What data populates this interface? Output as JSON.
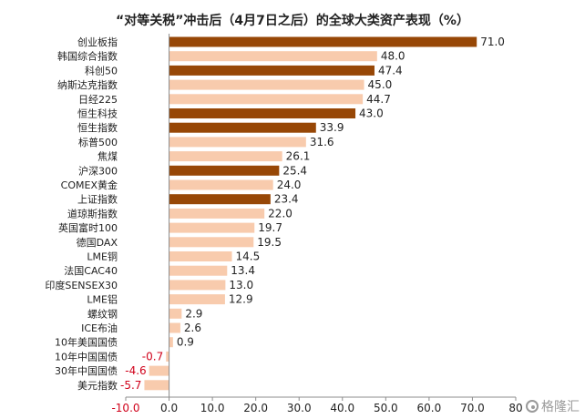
{
  "chart_data": {
    "type": "bar",
    "orientation": "horizontal",
    "title": "“对等关税”冲击后（4月7日之后）的全球大类资产表现（%）",
    "categories": [
      "创业板指",
      "韩国综合指数",
      "科创50",
      "纳斯达克指数",
      "日经225",
      "恒生科技",
      "恒生指数",
      "标普500",
      "焦煤",
      "沪深300",
      "COMEX黄金",
      "上证指数",
      "道琼斯指数",
      "英国富时100",
      "德国DAX",
      "LME铜",
      "法国CAC40",
      "印度SENSEX30",
      "LME铝",
      "螺纹钢",
      "ICE布油",
      "10年美国国债",
      "10年中国国债",
      "30年中国国债",
      "美元指数"
    ],
    "values": [
      71.0,
      48.0,
      47.4,
      45.0,
      44.7,
      43.0,
      33.9,
      31.6,
      26.1,
      25.4,
      24.0,
      23.4,
      22.0,
      19.7,
      19.5,
      14.5,
      13.4,
      13.0,
      12.9,
      2.9,
      2.6,
      0.9,
      -0.7,
      -4.6,
      -5.7
    ],
    "value_labels": [
      "71.0",
      "48.0",
      "47.4",
      "45.0",
      "44.7",
      "43.0",
      "33.9",
      "31.6",
      "26.1",
      "25.4",
      "24.0",
      "23.4",
      "22.0",
      "19.7",
      "19.5",
      "14.5",
      "13.4",
      "13.0",
      "12.9",
      "2.9",
      "2.6",
      "0.9",
      "-0.7",
      "-4.6",
      "-5.7"
    ],
    "highlighted": [
      true,
      false,
      true,
      false,
      false,
      true,
      true,
      false,
      false,
      true,
      false,
      true,
      false,
      false,
      false,
      false,
      false,
      false,
      false,
      false,
      false,
      false,
      false,
      false,
      false
    ],
    "colors": {
      "highlight": "#974706",
      "normal": "#f8cbad",
      "negative_label": "#d0021b"
    },
    "xlim": [
      -10,
      80
    ],
    "xticks": [
      "-10.0",
      "0.0",
      "10.0",
      "20.0",
      "30.0",
      "40.0",
      "50.0",
      "60.0",
      "70.0",
      "80"
    ],
    "xtick_values": [
      -10,
      0,
      10,
      20,
      30,
      40,
      50,
      60,
      70,
      80
    ],
    "grid": false,
    "legend": "none"
  },
  "watermark": {
    "text": "格隆汇",
    "icon": "gelonghui-logo-icon"
  }
}
